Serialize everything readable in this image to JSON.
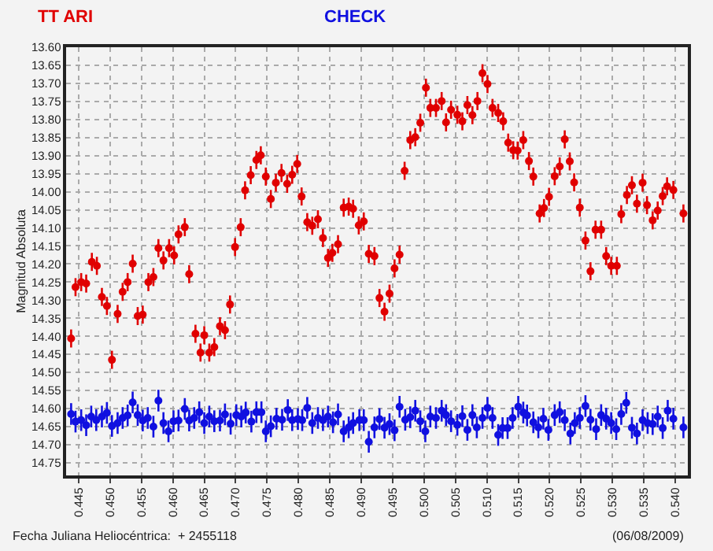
{
  "chart_data": {
    "type": "scatter",
    "xlabel": "Fecha Juliana Heliocéntrica:  + 2455118",
    "ylabel": "Magnitud Absoluta",
    "annotations": [
      "(06/08/2009)"
    ],
    "xlim": [
      0.443,
      0.542
    ],
    "ylim": [
      14.785,
      13.6
    ],
    "xticks": [
      {
        "value": 0.445,
        "label": "0.445"
      },
      {
        "value": 0.45,
        "label": "0.450"
      },
      {
        "value": 0.455,
        "label": "0.455"
      },
      {
        "value": 0.46,
        "label": "0.460"
      },
      {
        "value": 0.465,
        "label": "0.465"
      },
      {
        "value": 0.47,
        "label": "0.470"
      },
      {
        "value": 0.475,
        "label": "0.475"
      },
      {
        "value": 0.48,
        "label": "0.480"
      },
      {
        "value": 0.485,
        "label": "0.485"
      },
      {
        "value": 0.49,
        "label": "0.490"
      },
      {
        "value": 0.495,
        "label": "0.495"
      },
      {
        "value": 0.5,
        "label": "0.500"
      },
      {
        "value": 0.505,
        "label": "0.505"
      },
      {
        "value": 0.51,
        "label": "0.510"
      },
      {
        "value": 0.515,
        "label": "0.515"
      },
      {
        "value": 0.52,
        "label": "0.520"
      },
      {
        "value": 0.525,
        "label": "0.525"
      },
      {
        "value": 0.53,
        "label": "0.530"
      },
      {
        "value": 0.535,
        "label": "0.535"
      },
      {
        "value": 0.54,
        "label": "0.540"
      }
    ],
    "yticks": [
      {
        "value": 13.6,
        "label": "13.60"
      },
      {
        "value": 13.65,
        "label": "13.65"
      },
      {
        "value": 13.7,
        "label": "13.70"
      },
      {
        "value": 13.75,
        "label": "13.75"
      },
      {
        "value": 13.8,
        "label": "13.80"
      },
      {
        "value": 13.85,
        "label": "13.85"
      },
      {
        "value": 13.9,
        "label": "13.90"
      },
      {
        "value": 13.95,
        "label": "13.95"
      },
      {
        "value": 14.0,
        "label": "14.00"
      },
      {
        "value": 14.05,
        "label": "14.05"
      },
      {
        "value": 14.1,
        "label": "14.10"
      },
      {
        "value": 14.15,
        "label": "14.15"
      },
      {
        "value": 14.2,
        "label": "14.20"
      },
      {
        "value": 14.25,
        "label": "14.25"
      },
      {
        "value": 14.3,
        "label": "14.30"
      },
      {
        "value": 14.35,
        "label": "14.35"
      },
      {
        "value": 14.4,
        "label": "14.40"
      },
      {
        "value": 14.45,
        "label": "14.45"
      },
      {
        "value": 14.5,
        "label": "14.50"
      },
      {
        "value": 14.55,
        "label": "14.55"
      },
      {
        "value": 14.6,
        "label": "14.60"
      },
      {
        "value": 14.65,
        "label": "14.65"
      },
      {
        "value": 14.7,
        "label": "14.70"
      },
      {
        "value": 14.75,
        "label": "14.75"
      }
    ],
    "grid": true,
    "marker": "circle",
    "series": [
      {
        "name": "TT ARI",
        "color": "#e00000",
        "x": [
          0.4438,
          0.4445,
          0.4454,
          0.4462,
          0.4471,
          0.4479,
          0.4487,
          0.4495,
          0.4503,
          0.4512,
          0.452,
          0.4528,
          0.4536,
          0.4544,
          0.4552,
          0.4561,
          0.4569,
          0.4577,
          0.4585,
          0.4594,
          0.4602,
          0.4609,
          0.4619,
          0.4626,
          0.4636,
          0.4644,
          0.465,
          0.4658,
          0.4666,
          0.4675,
          0.4683,
          0.4691,
          0.4699,
          0.4708,
          0.4715,
          0.4724,
          0.4733,
          0.474,
          0.4748,
          0.4756,
          0.4764,
          0.4773,
          0.4782,
          0.479,
          0.4798,
          0.4805,
          0.4814,
          0.4822,
          0.4831,
          0.4839,
          0.4847,
          0.4854,
          0.4863,
          0.4872,
          0.488,
          0.4887,
          0.4896,
          0.4904,
          0.4912,
          0.4921,
          0.4929,
          0.4937,
          0.4945,
          0.4953,
          0.4961,
          0.4969,
          0.4978,
          0.4986,
          0.4994,
          0.5003,
          0.501,
          0.5019,
          0.5028,
          0.5035,
          0.5043,
          0.5053,
          0.5061,
          0.5069,
          0.5077,
          0.5085,
          0.5093,
          0.5101,
          0.5109,
          0.5118,
          0.5126,
          0.5134,
          0.5142,
          0.5149,
          0.5158,
          0.5167,
          0.5174,
          0.5184,
          0.5191,
          0.5199,
          0.5208,
          0.5216,
          0.5224,
          0.5232,
          0.5239,
          0.5248,
          0.5257,
          0.5265,
          0.5273,
          0.5282,
          0.529,
          0.5298,
          0.5307,
          0.5314,
          0.5323,
          0.5331,
          0.5339,
          0.5348,
          0.5355,
          0.5364,
          0.5372,
          0.538,
          0.5387,
          0.5397,
          0.5413
        ],
        "values": [
          14.406,
          14.264,
          14.25,
          14.254,
          14.194,
          14.205,
          14.291,
          14.316,
          14.465,
          14.338,
          14.277,
          14.25,
          14.199,
          14.344,
          14.34,
          14.25,
          14.236,
          14.156,
          14.19,
          14.156,
          14.176,
          14.118,
          14.098,
          14.228,
          14.393,
          14.445,
          14.397,
          14.445,
          14.43,
          14.372,
          14.383,
          14.312,
          14.153,
          14.098,
          13.996,
          13.954,
          13.912,
          13.899,
          13.958,
          14.02,
          13.975,
          13.948,
          13.978,
          13.953,
          13.923,
          14.013,
          14.084,
          14.094,
          14.076,
          14.128,
          14.183,
          14.169,
          14.145,
          14.044,
          14.041,
          14.047,
          14.093,
          14.082,
          14.172,
          14.178,
          14.294,
          14.332,
          14.282,
          14.212,
          14.174,
          13.942,
          13.857,
          13.849,
          13.809,
          13.712,
          13.768,
          13.768,
          13.749,
          13.808,
          13.773,
          13.787,
          13.805,
          13.76,
          13.788,
          13.749,
          13.672,
          13.702,
          13.768,
          13.782,
          13.805,
          13.864,
          13.885,
          13.886,
          13.857,
          13.915,
          13.958,
          14.06,
          14.045,
          14.014,
          13.957,
          13.93,
          13.855,
          13.916,
          13.974,
          14.044,
          14.135,
          14.22,
          14.105,
          14.105,
          14.178,
          14.205,
          14.205,
          14.062,
          14.009,
          13.982,
          14.033,
          13.975,
          14.037,
          14.079,
          14.052,
          14.012,
          13.985,
          13.995,
          14.06
        ],
        "errors": [
          0.025,
          0.025,
          0.025,
          0.025,
          0.025,
          0.025,
          0.025,
          0.025,
          0.025,
          0.025,
          0.025,
          0.025,
          0.025,
          0.025,
          0.025,
          0.025,
          0.025,
          0.025,
          0.025,
          0.025,
          0.025,
          0.025,
          0.025,
          0.025,
          0.025,
          0.025,
          0.025,
          0.025,
          0.025,
          0.025,
          0.025,
          0.025,
          0.025,
          0.025,
          0.025,
          0.025,
          0.025,
          0.025,
          0.025,
          0.025,
          0.025,
          0.025,
          0.025,
          0.025,
          0.025,
          0.025,
          0.025,
          0.025,
          0.025,
          0.025,
          0.025,
          0.025,
          0.025,
          0.025,
          0.025,
          0.025,
          0.025,
          0.025,
          0.025,
          0.025,
          0.025,
          0.025,
          0.025,
          0.025,
          0.025,
          0.025,
          0.025,
          0.025,
          0.025,
          0.025,
          0.025,
          0.025,
          0.025,
          0.025,
          0.025,
          0.025,
          0.025,
          0.025,
          0.025,
          0.025,
          0.025,
          0.025,
          0.025,
          0.025,
          0.025,
          0.025,
          0.025,
          0.025,
          0.025,
          0.025,
          0.025,
          0.025,
          0.025,
          0.025,
          0.025,
          0.025,
          0.025,
          0.025,
          0.025,
          0.025,
          0.025,
          0.025,
          0.025,
          0.025,
          0.025,
          0.025,
          0.025,
          0.025,
          0.025,
          0.025,
          0.025,
          0.025,
          0.025,
          0.025,
          0.025,
          0.025,
          0.025,
          0.025,
          0.025
        ]
      },
      {
        "name": "CHECK",
        "color": "#1010e0",
        "x": [
          0.4438,
          0.4445,
          0.4454,
          0.4462,
          0.447,
          0.4478,
          0.4487,
          0.4495,
          0.4503,
          0.4512,
          0.452,
          0.4528,
          0.4536,
          0.4544,
          0.4552,
          0.456,
          0.4569,
          0.4577,
          0.4585,
          0.4593,
          0.4601,
          0.4609,
          0.4619,
          0.4626,
          0.4634,
          0.4642,
          0.465,
          0.4658,
          0.4666,
          0.4675,
          0.4683,
          0.4692,
          0.4701,
          0.4709,
          0.4716,
          0.4725,
          0.4733,
          0.4741,
          0.4748,
          0.4756,
          0.4765,
          0.4774,
          0.4783,
          0.479,
          0.4799,
          0.4806,
          0.4814,
          0.4822,
          0.4831,
          0.4839,
          0.4847,
          0.4855,
          0.4863,
          0.4872,
          0.488,
          0.4887,
          0.4897,
          0.4904,
          0.4912,
          0.4921,
          0.4929,
          0.4937,
          0.4945,
          0.4953,
          0.4961,
          0.497,
          0.4978,
          0.4986,
          0.4994,
          0.5002,
          0.501,
          0.5019,
          0.5028,
          0.5035,
          0.5043,
          0.5053,
          0.5061,
          0.5069,
          0.5077,
          0.5084,
          0.5093,
          0.5101,
          0.5109,
          0.5118,
          0.5125,
          0.5133,
          0.5141,
          0.515,
          0.5158,
          0.5164,
          0.5174,
          0.5182,
          0.519,
          0.5198,
          0.5208,
          0.5216,
          0.5224,
          0.5233,
          0.524,
          0.5248,
          0.5257,
          0.5265,
          0.5274,
          0.5282,
          0.529,
          0.5298,
          0.5306,
          0.5314,
          0.5322,
          0.5331,
          0.5339,
          0.5348,
          0.5356,
          0.5364,
          0.5372,
          0.538,
          0.5388,
          0.5397,
          0.5413
        ],
        "values": [
          14.615,
          14.636,
          14.632,
          14.646,
          14.622,
          14.632,
          14.622,
          14.612,
          14.648,
          14.64,
          14.626,
          14.619,
          14.583,
          14.618,
          14.633,
          14.626,
          14.65,
          14.578,
          14.64,
          14.663,
          14.635,
          14.633,
          14.601,
          14.633,
          14.626,
          14.61,
          14.64,
          14.622,
          14.635,
          14.633,
          14.616,
          14.642,
          14.618,
          14.622,
          14.611,
          14.636,
          14.61,
          14.61,
          14.663,
          14.649,
          14.628,
          14.631,
          14.604,
          14.632,
          14.629,
          14.632,
          14.598,
          14.64,
          14.626,
          14.632,
          14.622,
          14.638,
          14.616,
          14.663,
          14.652,
          14.64,
          14.632,
          14.632,
          14.692,
          14.652,
          14.629,
          14.653,
          14.643,
          14.66,
          14.595,
          14.631,
          14.624,
          14.606,
          14.635,
          14.663,
          14.622,
          14.626,
          14.606,
          14.618,
          14.635,
          14.645,
          14.621,
          14.659,
          14.618,
          14.652,
          14.626,
          14.598,
          14.626,
          14.673,
          14.654,
          14.654,
          14.626,
          14.595,
          14.611,
          14.619,
          14.638,
          14.652,
          14.628,
          14.659,
          14.618,
          14.61,
          14.632,
          14.669,
          14.64,
          14.626,
          14.593,
          14.631,
          14.657,
          14.618,
          14.628,
          14.64,
          14.657,
          14.615,
          14.584,
          14.653,
          14.669,
          14.632,
          14.64,
          14.643,
          14.622,
          14.654,
          14.606,
          14.628,
          14.652
        ],
        "errors": [
          0.03,
          0.03,
          0.03,
          0.03,
          0.03,
          0.03,
          0.03,
          0.03,
          0.03,
          0.03,
          0.03,
          0.03,
          0.03,
          0.03,
          0.03,
          0.03,
          0.03,
          0.03,
          0.03,
          0.03,
          0.03,
          0.03,
          0.03,
          0.03,
          0.03,
          0.03,
          0.03,
          0.03,
          0.03,
          0.03,
          0.03,
          0.03,
          0.03,
          0.03,
          0.03,
          0.03,
          0.03,
          0.03,
          0.03,
          0.03,
          0.03,
          0.03,
          0.03,
          0.03,
          0.03,
          0.03,
          0.03,
          0.03,
          0.03,
          0.03,
          0.03,
          0.03,
          0.03,
          0.03,
          0.03,
          0.03,
          0.03,
          0.03,
          0.03,
          0.03,
          0.03,
          0.03,
          0.03,
          0.03,
          0.03,
          0.03,
          0.03,
          0.03,
          0.03,
          0.03,
          0.03,
          0.03,
          0.03,
          0.03,
          0.03,
          0.03,
          0.03,
          0.03,
          0.03,
          0.03,
          0.03,
          0.03,
          0.03,
          0.03,
          0.03,
          0.03,
          0.03,
          0.03,
          0.03,
          0.03,
          0.03,
          0.03,
          0.03,
          0.03,
          0.03,
          0.03,
          0.03,
          0.03,
          0.03,
          0.03,
          0.03,
          0.03,
          0.03,
          0.03,
          0.03,
          0.03,
          0.03,
          0.03,
          0.03,
          0.03,
          0.03,
          0.03,
          0.03,
          0.03,
          0.03,
          0.03,
          0.03,
          0.03,
          0.03
        ]
      }
    ]
  }
}
